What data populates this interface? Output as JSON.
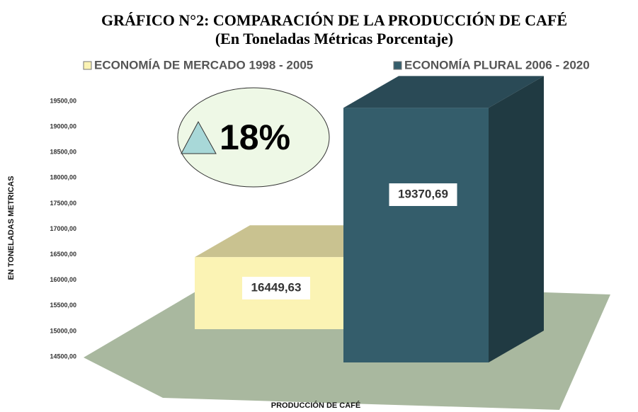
{
  "chart_data": {
    "type": "bar",
    "title": "GRÁFICO N°2: COMPARACIÓN DE LA PRODUCCIÓN DE CAFÉ",
    "subtitle": "(En Toneladas Métricas Porcentaje)",
    "xlabel": "PRODUCCIÓN DE CAFÉ",
    "ylabel": "EN TONELADAS METRICAS",
    "annotation": "18%",
    "categories": [
      null
    ],
    "series": [
      {
        "name": "ECONOMÍA DE MERCADO 1998 - 2005",
        "color": "#fbf3b4",
        "values": [
          16449.63
        ],
        "value_labels": [
          "16449,63"
        ]
      },
      {
        "name": "ECONOMÍA PLURAL 2006 - 2020",
        "color": "#345d6b",
        "values": [
          19370.69
        ],
        "value_labels": [
          "19370,69"
        ]
      }
    ],
    "ylim": [
      14500,
      19500
    ],
    "yticks": [
      {
        "value": 14500,
        "label": "14500,00"
      },
      {
        "value": 15000,
        "label": "15000,00"
      },
      {
        "value": 15500,
        "label": "15500,00"
      },
      {
        "value": 16000,
        "label": "16000,00"
      },
      {
        "value": 16500,
        "label": "16500,00"
      },
      {
        "value": 17000,
        "label": "17000,00"
      },
      {
        "value": 17500,
        "label": "17500,00"
      },
      {
        "value": 18000,
        "label": "18000,00"
      },
      {
        "value": 18500,
        "label": "18500,00"
      },
      {
        "value": 19000,
        "label": "19000,00"
      },
      {
        "value": 19500,
        "label": "19500,00"
      }
    ],
    "legend": "top",
    "grid": false
  }
}
